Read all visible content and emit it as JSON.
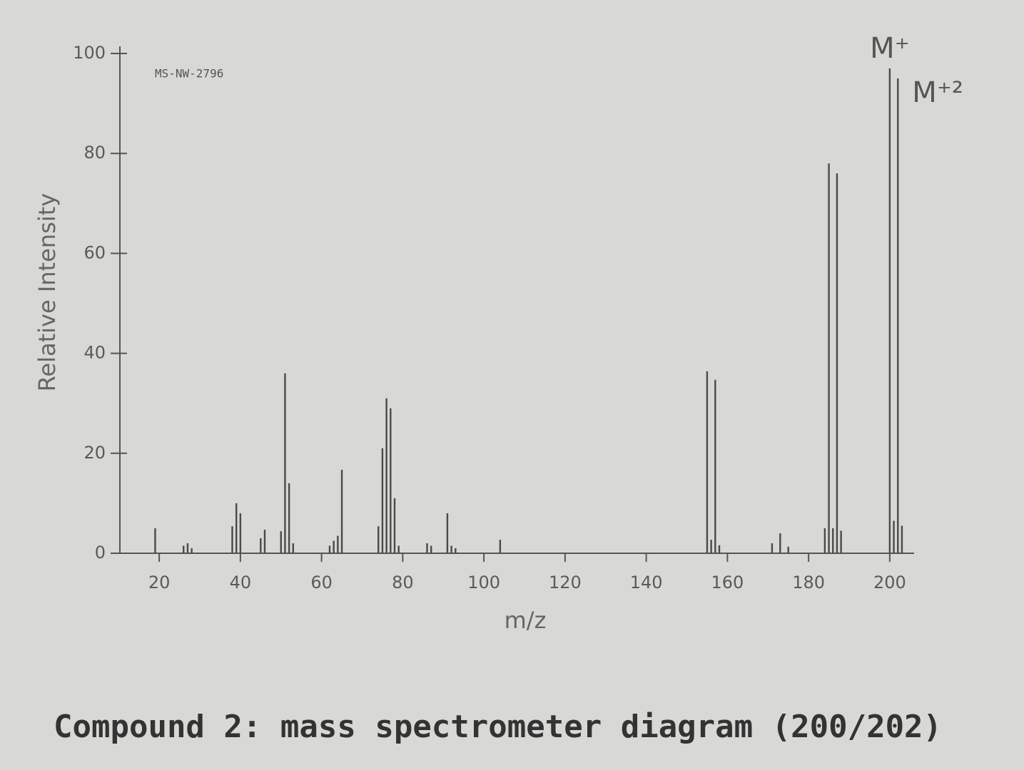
{
  "chart_data": {
    "type": "bar",
    "title": "Compound 2: mass spectrometer diagram (200/202)",
    "xlabel": "m/z",
    "ylabel": "Relative Intensity",
    "note": "MS-NW-2796",
    "annotations": [
      {
        "text": "M⁺",
        "x": 200
      },
      {
        "text": "M⁺²",
        "x": 202
      }
    ],
    "x": [
      19,
      26,
      27,
      28,
      38,
      39,
      40,
      45,
      46,
      50,
      51,
      52,
      53,
      62,
      63,
      64,
      65,
      74,
      75,
      76,
      77,
      78,
      79,
      86,
      87,
      91,
      92,
      93,
      104,
      155,
      156,
      157,
      158,
      171,
      173,
      175,
      184,
      185,
      186,
      187,
      188,
      200,
      201,
      202,
      203
    ],
    "values": [
      5,
      1.5,
      2,
      1,
      5.4,
      10,
      8,
      3,
      4.7,
      4.4,
      36,
      14,
      2,
      1.5,
      2.5,
      3.5,
      16.7,
      5.4,
      21,
      31,
      29,
      11,
      1.5,
      2,
      1.5,
      8,
      1.5,
      1,
      2.7,
      36.4,
      2.7,
      34.7,
      1.6,
      2,
      4,
      1.3,
      5,
      78,
      5,
      76,
      4.5,
      97,
      6.5,
      95,
      5.5
    ],
    "color": "#4a4a4a",
    "xlim": [
      14,
      206
    ],
    "ylim": [
      0,
      100
    ],
    "xticks": [
      20,
      40,
      60,
      80,
      100,
      120,
      140,
      160,
      180,
      200
    ],
    "yticks": [
      0,
      20,
      40,
      60,
      80,
      100
    ]
  }
}
